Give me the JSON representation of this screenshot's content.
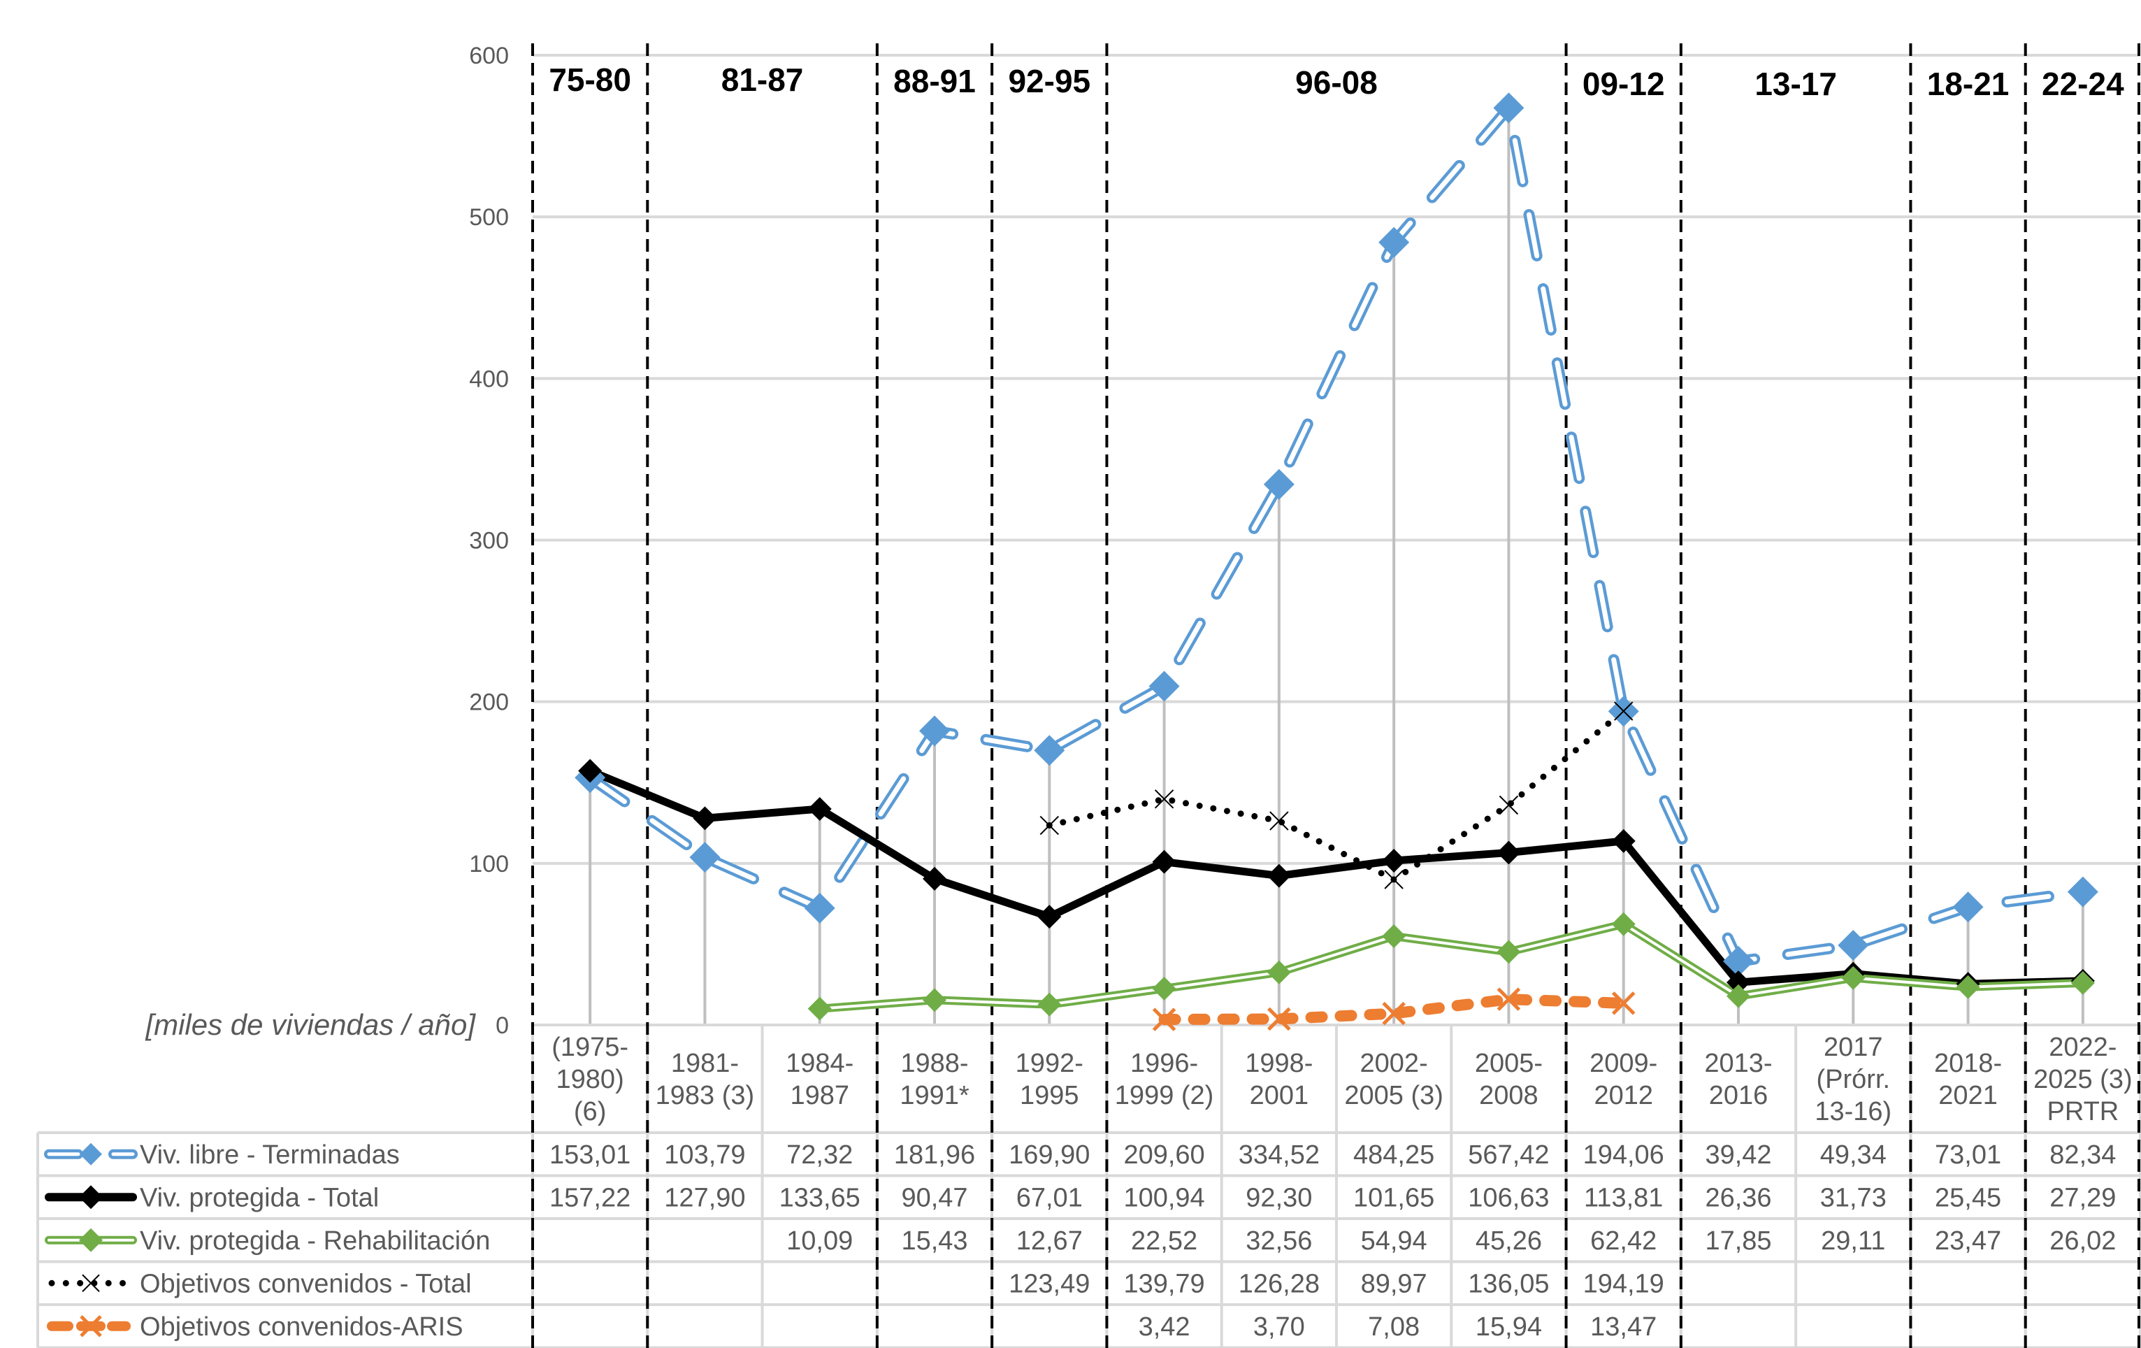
{
  "chart_data": {
    "type": "line",
    "title": "",
    "ylabel": "[miles de viviendas / año]",
    "xlabel": "",
    "ylim": [
      0,
      600
    ],
    "yticks": [
      0,
      100,
      200,
      300,
      400,
      500,
      600
    ],
    "grid": true,
    "legend_placement": "data-table-left",
    "categories": [
      [
        "(1975-",
        "1980)",
        "(6)"
      ],
      [
        "1981-",
        "1983 (3)"
      ],
      [
        "1984-",
        "1987"
      ],
      [
        "1988-",
        "1991*"
      ],
      [
        "1992-",
        "1995"
      ],
      [
        "1996-",
        "1999 (2)"
      ],
      [
        "1998-",
        "2001"
      ],
      [
        "2002-",
        "2005 (3)"
      ],
      [
        "2005-",
        "2008"
      ],
      [
        "2009-",
        "2012"
      ],
      [
        "2013-",
        "2016"
      ],
      [
        "2017",
        "(Prórr.",
        "13-16)"
      ],
      [
        "2018-",
        "2021"
      ],
      [
        "2022-",
        "2025 (3)",
        "PRTR"
      ]
    ],
    "periods": [
      {
        "label": "75-80",
        "span": [
          0,
          0
        ]
      },
      {
        "label": "81-87",
        "span": [
          1,
          2
        ]
      },
      {
        "label": "88-91",
        "span": [
          3,
          3
        ]
      },
      {
        "label": "92-95",
        "span": [
          4,
          4
        ]
      },
      {
        "label": "96-08",
        "span": [
          5,
          8
        ]
      },
      {
        "label": "09-12",
        "span": [
          9,
          9
        ]
      },
      {
        "label": "13-17",
        "span": [
          10,
          11
        ]
      },
      {
        "label": "18-21",
        "span": [
          12,
          12
        ]
      },
      {
        "label": "22-24",
        "span": [
          13,
          13
        ]
      }
    ],
    "series": [
      {
        "name": "Viv. libre - Terminadas",
        "color": "#5B9BD5",
        "style": "dashed-compound",
        "marker": "diamond",
        "values": [
          153.01,
          103.79,
          72.32,
          181.96,
          169.9,
          209.6,
          334.52,
          484.25,
          567.42,
          194.06,
          39.42,
          49.34,
          73.01,
          82.34
        ],
        "labels": [
          "153,01",
          "103,79",
          "72,32",
          "181,96",
          "169,90",
          "209,60",
          "334,52",
          "484,25",
          "567,42",
          "194,06",
          "39,42",
          "49,34",
          "73,01",
          "82,34"
        ]
      },
      {
        "name": "Viv. protegida - Total",
        "color": "#000000",
        "style": "solid-thick",
        "marker": "diamond",
        "values": [
          157.22,
          127.9,
          133.65,
          90.47,
          67.01,
          100.94,
          92.3,
          101.65,
          106.63,
          113.81,
          26.36,
          31.73,
          25.45,
          27.29
        ],
        "labels": [
          "157,22",
          "127,90",
          "133,65",
          "90,47",
          "67,01",
          "100,94",
          "92,30",
          "101,65",
          "106,63",
          "113,81",
          "26,36",
          "31,73",
          "25,45",
          "27,29"
        ]
      },
      {
        "name": "Viv. protegida - Rehabilitación",
        "color": "#70AD47",
        "style": "solid-compound",
        "marker": "diamond",
        "values": [
          null,
          null,
          10.09,
          15.43,
          12.67,
          22.52,
          32.56,
          54.94,
          45.26,
          62.42,
          17.85,
          29.11,
          23.47,
          26.02
        ],
        "labels": [
          "",
          "",
          "10,09",
          "15,43",
          "12,67",
          "22,52",
          "32,56",
          "54,94",
          "45,26",
          "62,42",
          "17,85",
          "29,11",
          "23,47",
          "26,02"
        ]
      },
      {
        "name": "Objetivos convenidos - Total",
        "color": "#000000",
        "style": "dotted",
        "marker": "x",
        "values": [
          null,
          null,
          null,
          null,
          123.49,
          139.79,
          126.28,
          89.97,
          136.05,
          194.19,
          null,
          null,
          null,
          null
        ],
        "labels": [
          "",
          "",
          "",
          "",
          "123,49",
          "139,79",
          "126,28",
          "89,97",
          "136,05",
          "194,19",
          "",
          "",
          "",
          ""
        ]
      },
      {
        "name": "Objetivos convenidos-ARIS",
        "color": "#ED7D31",
        "style": "dashed-thick",
        "marker": "x",
        "values": [
          null,
          null,
          null,
          null,
          null,
          3.42,
          3.7,
          7.08,
          15.94,
          13.47,
          null,
          null,
          null,
          null
        ],
        "labels": [
          "",
          "",
          "",
          "",
          "",
          "3,42",
          "3,70",
          "7,08",
          "15,94",
          "13,47",
          "",
          "",
          "",
          ""
        ]
      }
    ]
  },
  "colors": {
    "gridline": "#D9D9D9",
    "dropline": "#BFBFBF",
    "separator": "#000000",
    "text": "#595959"
  }
}
